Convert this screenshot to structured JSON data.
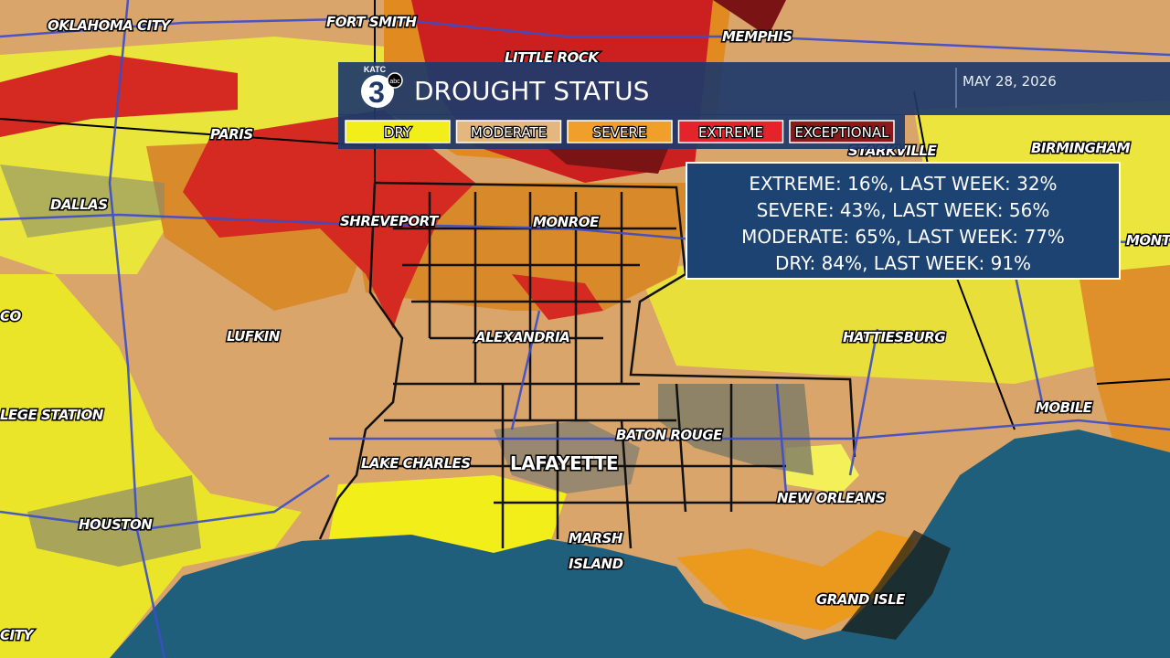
{
  "header": {
    "logo": {
      "name": "KATC",
      "number": "3",
      "network": "abc"
    },
    "title": "DROUGHT STATUS",
    "date": "MAY 28, 2026"
  },
  "legend": [
    {
      "label": "DRY",
      "color": "#f2ee1a"
    },
    {
      "label": "MODERATE",
      "color": "#e3b77e"
    },
    {
      "label": "SEVERE",
      "color": "#f0a02a"
    },
    {
      "label": "EXTREME",
      "color": "#e4242a"
    },
    {
      "label": "EXCEPTIONAL",
      "color": "#8a1a1a"
    }
  ],
  "stats": [
    "EXTREME: 16%, LAST WEEK: 32%",
    "SEVERE: 43%, LAST WEEK: 56%",
    "MODERATE: 65%, LAST WEEK: 77%",
    "DRY: 84%, LAST WEEK: 91%"
  ],
  "cities": [
    "OKLAHOMA CITY",
    "FORT SMITH",
    "MEMPHIS",
    "LITTLE ROCK",
    "PARIS",
    "STARKVILLE",
    "BIRMINGHAM",
    "DALLAS",
    "SHREVEPORT",
    "MONROE",
    "MONT",
    "CO",
    "LUFKIN",
    "ALEXANDRIA",
    "HATTIESBURG",
    "LEGE STATION",
    "MOBILE",
    "BATON ROUGE",
    "LAKE CHARLES",
    "LAFAYETTE",
    "NEW ORLEANS",
    "HOUSTON",
    "MARSH",
    "ISLAND",
    "GRAND ISLE",
    "CITY"
  ]
}
